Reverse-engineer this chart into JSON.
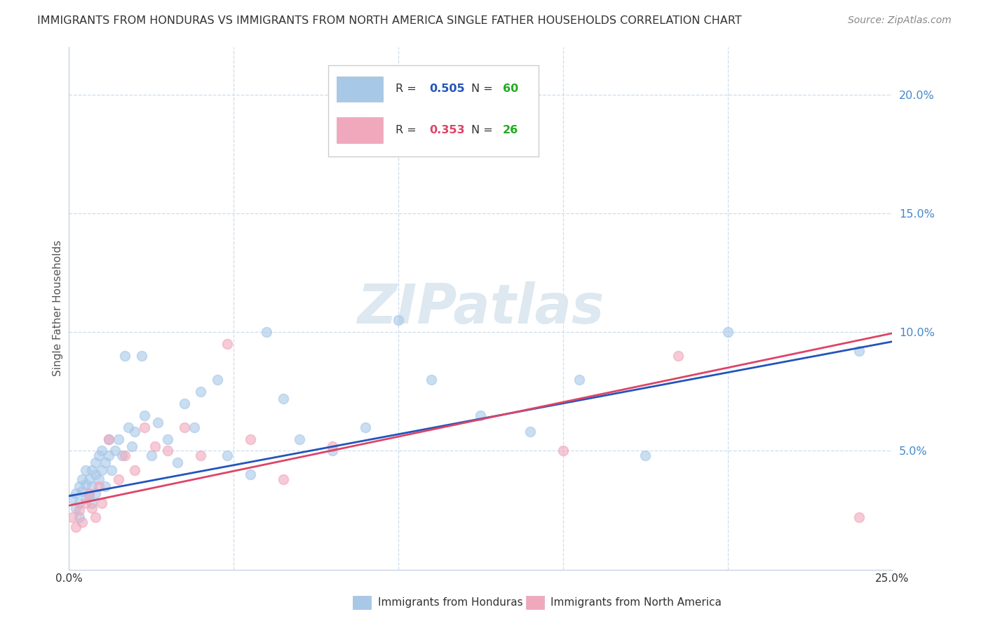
{
  "title": "IMMIGRANTS FROM HONDURAS VS IMMIGRANTS FROM NORTH AMERICA SINGLE FATHER HOUSEHOLDS CORRELATION CHART",
  "source": "Source: ZipAtlas.com",
  "xlabel_blue": "Immigrants from Honduras",
  "xlabel_pink": "Immigrants from North America",
  "ylabel": "Single Father Households",
  "xlim": [
    0.0,
    0.25
  ],
  "ylim": [
    0.0,
    0.22
  ],
  "xticks": [
    0.0,
    0.05,
    0.1,
    0.15,
    0.2,
    0.25
  ],
  "yticks": [
    0.05,
    0.1,
    0.15,
    0.2
  ],
  "xtick_labels": [
    "0.0%",
    "",
    "",
    "",
    "",
    "25.0%"
  ],
  "ytick_labels": [
    "5.0%",
    "10.0%",
    "15.0%",
    "20.0%"
  ],
  "blue_R": 0.505,
  "blue_N": 60,
  "pink_R": 0.353,
  "pink_N": 26,
  "blue_color": "#a8c8e8",
  "pink_color": "#f0a8bc",
  "blue_line_color": "#2255bb",
  "pink_line_color": "#dd4466",
  "legend_text_color": "#333333",
  "legend_R_blue": "#2255bb",
  "legend_R_pink": "#dd4466",
  "legend_N_color": "#22aa22",
  "watermark": "ZIPatlas",
  "watermark_color": "#dde8f0",
  "title_color": "#333333",
  "source_color": "#888888",
  "axis_label_color": "#555555",
  "tick_color_y_right": "#4488cc",
  "grid_color": "#ccddee",
  "blue_x": [
    0.001,
    0.002,
    0.002,
    0.003,
    0.003,
    0.003,
    0.004,
    0.004,
    0.005,
    0.005,
    0.005,
    0.006,
    0.006,
    0.007,
    0.007,
    0.007,
    0.008,
    0.008,
    0.008,
    0.009,
    0.009,
    0.01,
    0.01,
    0.011,
    0.011,
    0.012,
    0.012,
    0.013,
    0.014,
    0.015,
    0.016,
    0.017,
    0.018,
    0.019,
    0.02,
    0.022,
    0.023,
    0.025,
    0.027,
    0.03,
    0.033,
    0.035,
    0.038,
    0.04,
    0.045,
    0.048,
    0.055,
    0.06,
    0.065,
    0.07,
    0.08,
    0.09,
    0.1,
    0.11,
    0.125,
    0.14,
    0.155,
    0.175,
    0.2,
    0.24
  ],
  "blue_y": [
    0.03,
    0.026,
    0.032,
    0.028,
    0.035,
    0.022,
    0.033,
    0.038,
    0.03,
    0.036,
    0.042,
    0.031,
    0.038,
    0.035,
    0.042,
    0.028,
    0.04,
    0.045,
    0.032,
    0.038,
    0.048,
    0.042,
    0.05,
    0.045,
    0.035,
    0.048,
    0.055,
    0.042,
    0.05,
    0.055,
    0.048,
    0.09,
    0.06,
    0.052,
    0.058,
    0.09,
    0.065,
    0.048,
    0.062,
    0.055,
    0.045,
    0.07,
    0.06,
    0.075,
    0.08,
    0.048,
    0.04,
    0.1,
    0.072,
    0.055,
    0.05,
    0.06,
    0.105,
    0.08,
    0.065,
    0.058,
    0.08,
    0.048,
    0.1,
    0.092
  ],
  "pink_x": [
    0.001,
    0.002,
    0.003,
    0.004,
    0.005,
    0.006,
    0.007,
    0.008,
    0.009,
    0.01,
    0.012,
    0.015,
    0.017,
    0.02,
    0.023,
    0.026,
    0.03,
    0.035,
    0.04,
    0.048,
    0.055,
    0.065,
    0.08,
    0.15,
    0.185,
    0.24
  ],
  "pink_y": [
    0.022,
    0.018,
    0.025,
    0.02,
    0.028,
    0.032,
    0.026,
    0.022,
    0.035,
    0.028,
    0.055,
    0.038,
    0.048,
    0.042,
    0.06,
    0.052,
    0.05,
    0.06,
    0.048,
    0.095,
    0.055,
    0.038,
    0.052,
    0.05,
    0.09,
    0.022
  ],
  "blue_intercept": 0.031,
  "blue_slope": 0.26,
  "pink_intercept": 0.027,
  "pink_slope": 0.29
}
